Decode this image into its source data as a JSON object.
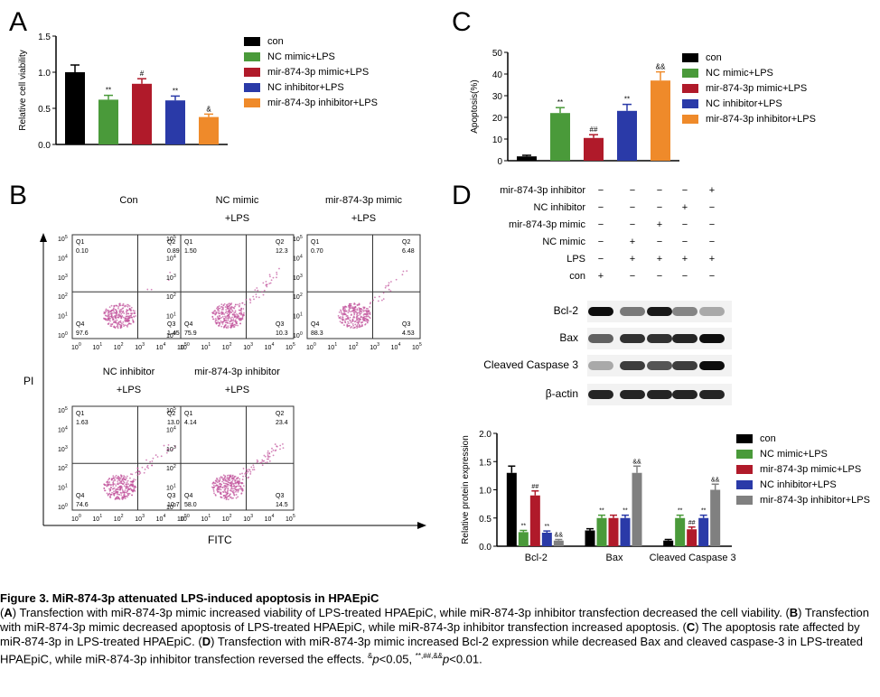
{
  "panels": {
    "A": "A",
    "B": "B",
    "C": "C",
    "D": "D"
  },
  "colors": {
    "con": "#000000",
    "nc_mimic": "#4a9a3a",
    "mir_mimic": "#b01a2a",
    "nc_inhibitor": "#2a3aa8",
    "mir_inhibitor_orange": "#ef8a2a",
    "mir_inhibitor_gray": "#808080",
    "facs": "#c0509a"
  },
  "chart_data": [
    {
      "panel": "A",
      "type": "bar",
      "categories": [
        "con",
        "NC mimic+LPS",
        "mir-874-3p mimic+LPS",
        "NC inhibitor+LPS",
        "mir-874-3p inhibitor+LPS"
      ],
      "values": [
        1.0,
        0.62,
        0.84,
        0.61,
        0.38
      ],
      "errors": [
        0.1,
        0.06,
        0.07,
        0.06,
        0.04
      ],
      "annotations": [
        "",
        "**",
        "#",
        "**",
        "&"
      ],
      "ylabel": "Relative cell viability",
      "ylim": [
        0,
        1.5
      ],
      "yticks": [
        "0.0",
        "0.5",
        "1.0",
        "1.5"
      ],
      "legend": [
        "con",
        "NC mimic+LPS",
        "mir-874-3p mimic+LPS",
        "NC inhibitor+LPS",
        "mir-874-3p inhibitor+LPS"
      ]
    },
    {
      "panel": "C",
      "type": "bar",
      "categories": [
        "con",
        "NC mimic+LPS",
        "mir-874-3p mimic+LPS",
        "NC inhibitor+LPS",
        "mir-874-3p inhibitor+LPS"
      ],
      "values": [
        2,
        22,
        10.5,
        23,
        37
      ],
      "errors": [
        0.5,
        2.5,
        1.5,
        3,
        4
      ],
      "annotations": [
        "",
        "**",
        "##",
        "**",
        "&&"
      ],
      "ylabel": "Apoptosis(%)",
      "ylim": [
        0,
        50
      ],
      "yticks": [
        "0",
        "10",
        "20",
        "30",
        "40",
        "50"
      ],
      "legend": [
        "con",
        "NC mimic+LPS",
        "mir-874-3p mimic+LPS",
        "NC inhibitor+LPS",
        "mir-874-3p inhibitor+LPS"
      ]
    },
    {
      "panel": "D",
      "type": "bar",
      "categories": [
        "Bcl-2",
        "Bax",
        "Cleaved Caspase 3"
      ],
      "series": [
        {
          "name": "con",
          "values": [
            1.3,
            0.28,
            0.1
          ],
          "errors": [
            0.12,
            0.03,
            0.02
          ],
          "annotations": [
            "",
            "",
            ""
          ]
        },
        {
          "name": "NC mimic+LPS",
          "values": [
            0.25,
            0.5,
            0.5
          ],
          "errors": [
            0.03,
            0.05,
            0.05
          ],
          "annotations": [
            "**",
            "**",
            "**"
          ]
        },
        {
          "name": "mir-874-3p mimic+LPS",
          "values": [
            0.9,
            0.5,
            0.3
          ],
          "errors": [
            0.08,
            0.05,
            0.04
          ],
          "annotations": [
            "##",
            "",
            "##"
          ]
        },
        {
          "name": "NC inhibitor+LPS",
          "values": [
            0.24,
            0.5,
            0.5
          ],
          "errors": [
            0.03,
            0.05,
            0.05
          ],
          "annotations": [
            "**",
            "**",
            "**"
          ]
        },
        {
          "name": "mir-874-3p inhibitor+LPS",
          "values": [
            0.1,
            1.3,
            1.0
          ],
          "errors": [
            0.02,
            0.12,
            0.1
          ],
          "annotations": [
            "&&",
            "&&",
            "&&"
          ]
        }
      ],
      "ylabel": "Relative protein expression",
      "ylim": [
        0,
        2.0
      ],
      "yticks": [
        "0.0",
        "0.5",
        "1.0",
        "1.5",
        "2.0"
      ],
      "legend": [
        "con",
        "NC mimic+LPS",
        "mir-874-3p mimic+LPS",
        "NC inhibitor+LPS",
        "mir-874-3p inhibitor+LPS"
      ]
    }
  ],
  "flow": {
    "y_axis_label": "PI",
    "x_axis_label": "FITC",
    "axis_ticks": [
      "10",
      "0",
      "1",
      "2",
      "3",
      "4",
      "5"
    ],
    "plots": [
      {
        "title1": "Con",
        "title2": "",
        "q1": "Q1",
        "q1v": "0.10",
        "q2": "Q2",
        "q2v": "0.89",
        "q3": "Q3",
        "q3v": "1.45",
        "q4": "Q4",
        "q4v": "97.6"
      },
      {
        "title1": "NC mimic",
        "title2": "+LPS",
        "q1": "Q1",
        "q1v": "1.50",
        "q2": "Q2",
        "q2v": "12.3",
        "q3": "Q3",
        "q3v": "10.3",
        "q4": "Q4",
        "q4v": "75.9"
      },
      {
        "title1": "mir-874-3p mimic",
        "title2": "+LPS",
        "q1": "Q1",
        "q1v": "0.70",
        "q2": "Q2",
        "q2v": "6.48",
        "q3": "Q3",
        "q3v": "4.53",
        "q4": "Q4",
        "q4v": "88.3"
      },
      {
        "title1": "NC inhibitor",
        "title2": "+LPS",
        "q1": "Q1",
        "q1v": "1.63",
        "q2": "Q2",
        "q2v": "13.0",
        "q3": "Q3",
        "q3v": "10.7",
        "q4": "Q4",
        "q4v": "74.6"
      },
      {
        "title1": "mir-874-3p inhibitor",
        "title2": "+LPS",
        "q1": "Q1",
        "q1v": "4.14",
        "q2": "Q2",
        "q2v": "23.4",
        "q3": "Q3",
        "q3v": "14.5",
        "q4": "Q4",
        "q4v": "58.0"
      }
    ]
  },
  "western": {
    "conditions": [
      {
        "label": "mir-874-3p inhibitor",
        "signs": [
          "−",
          "−",
          "−",
          "−",
          "+"
        ]
      },
      {
        "label": "NC inhibitor",
        "signs": [
          "−",
          "−",
          "−",
          "+",
          "−"
        ]
      },
      {
        "label": "mir-874-3p mimic",
        "signs": [
          "−",
          "−",
          "+",
          "−",
          "−"
        ]
      },
      {
        "label": "NC mimic",
        "signs": [
          "−",
          "+",
          "−",
          "−",
          "−"
        ]
      },
      {
        "label": "LPS",
        "signs": [
          "−",
          "+",
          "+",
          "+",
          "+"
        ]
      },
      {
        "label": "con",
        "signs": [
          "+",
          "−",
          "−",
          "−",
          "−"
        ]
      }
    ],
    "bands": [
      {
        "label": "Bcl-2",
        "intensities": [
          0.95,
          0.5,
          0.9,
          0.45,
          0.3
        ]
      },
      {
        "label": "Bax",
        "intensities": [
          0.6,
          0.8,
          0.8,
          0.85,
          0.95
        ]
      },
      {
        "label": "Cleaved Caspase 3",
        "intensities": [
          0.3,
          0.75,
          0.65,
          0.75,
          0.95
        ]
      },
      {
        "label": "β-actin",
        "intensities": [
          0.85,
          0.85,
          0.85,
          0.85,
          0.85
        ]
      }
    ]
  },
  "caption": {
    "title": "Figure 3. MiR-874-3p attenuated LPS-induced apoptosis in HPAEpiC",
    "body_a_letter": "A",
    "body_a": ") Transfection with miR-874-3p mimic increased viability of LPS-treated HPAEpiC, while miR-874-3p inhibitor transfection decreased the cell viability. (",
    "body_b_letter": "B",
    "body_b": ") Transfection with miR-874-3p mimic decreased apoptosis of LPS-treated HPAEpiC, while miR-874-3p inhibitor transfection increased apoptosis. (",
    "body_c_letter": "C",
    "body_c": ") The apoptosis rate affected by miR-874-3p in LPS-treated HPAEpiC. (",
    "body_d_letter": "D",
    "body_d": ") Transfection with miR-874-3p mimic increased Bcl-2 expression while decreased Bax and cleaved caspase-3 in LPS-treated HPAEpiC, while miR-874-3p inhibitor transfection reversed the effects. ",
    "sig1_sup": "&",
    "sig1": "p",
    "sig1_rest": "<0.05, ",
    "sig2_sup": "**,##,&&",
    "sig2": "p",
    "sig2_rest": "<0.01."
  }
}
